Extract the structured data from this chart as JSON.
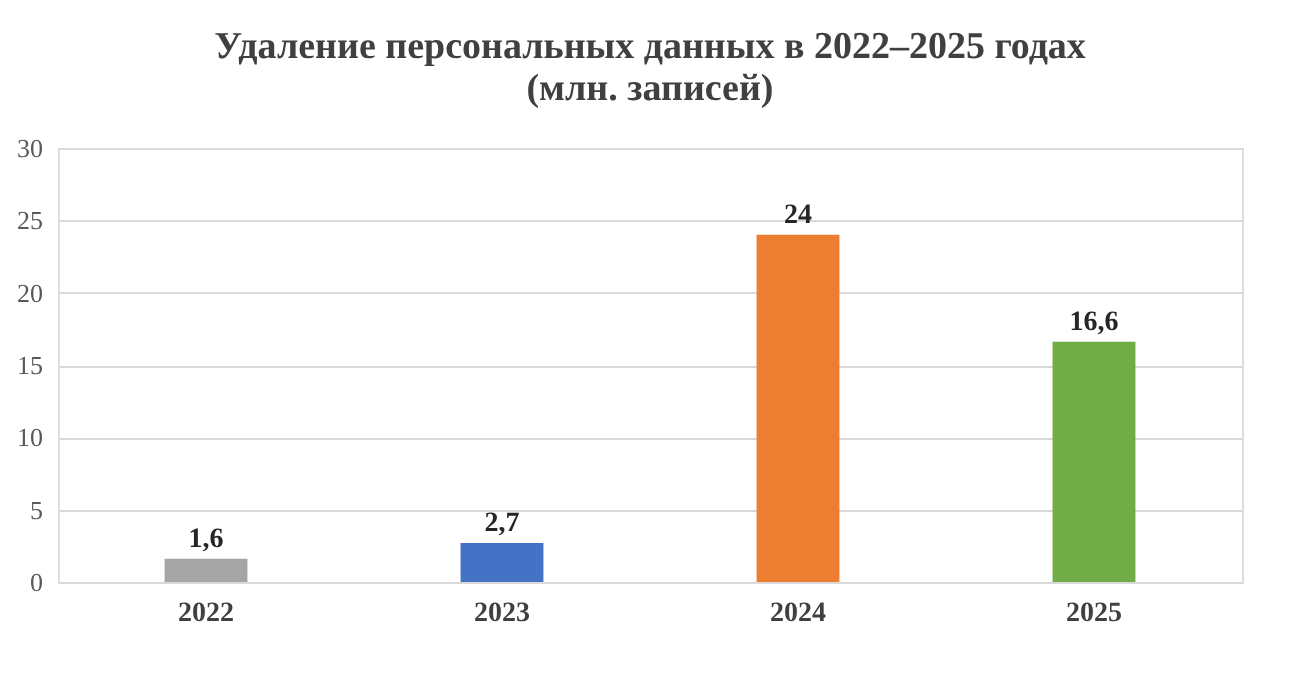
{
  "chart_data": {
    "type": "bar",
    "title": "Удаление персональных данных в 2022–2025 годах\n(млн. записей)",
    "categories": [
      "2022",
      "2023",
      "2024",
      "2025"
    ],
    "values": [
      1.6,
      2.7,
      24,
      16.6
    ],
    "colors": [
      "#a5a5a5",
      "#4472c4",
      "#ed7d31",
      "#70ad47"
    ],
    "value_labels": [
      "1,6",
      "2,7",
      "24",
      "16,6"
    ],
    "ylim": [
      0,
      30
    ],
    "yticks": [
      0,
      5,
      10,
      15,
      20,
      25,
      30
    ],
    "grid": "y",
    "legend": false
  }
}
